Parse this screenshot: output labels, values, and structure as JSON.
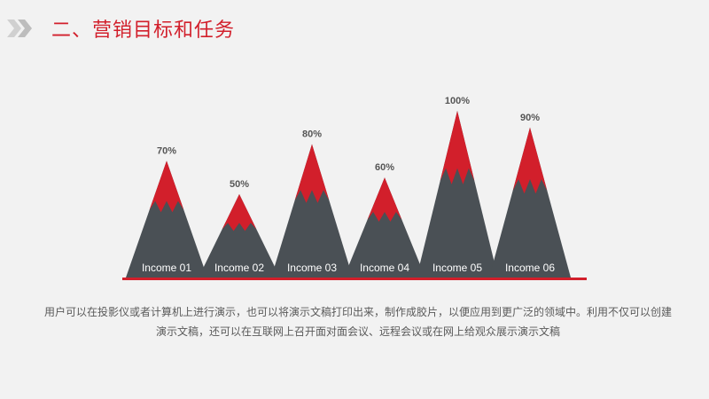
{
  "header": {
    "title": "二、营销目标和任务"
  },
  "icons": {
    "arrow": "double-chevron-right-icon"
  },
  "colors": {
    "accent": "#d21f2b",
    "mountain": "#4a5055",
    "baseline": "#d21f2b"
  },
  "chart_data": {
    "type": "area",
    "categories": [
      "Income 01",
      "Income 02",
      "Income 03",
      "Income 04",
      "Income 05",
      "Income 06"
    ],
    "values": [
      70,
      50,
      80,
      60,
      100,
      90
    ],
    "value_labels": [
      "70%",
      "50%",
      "80%",
      "60%",
      "100%",
      "90%"
    ],
    "ylim": [
      0,
      100
    ],
    "title": "",
    "xlabel": "",
    "ylabel": ""
  },
  "caption": {
    "text": "用户可以在投影仪或者计算机上进行演示，也可以将演示文稿打印出来，制作成胶片，以便应用到更广泛的领域中。利用不仅可以创建演示文稿，还可以在互联网上召开面对面会议、远程会议或在网上给观众展示演示文稿"
  }
}
